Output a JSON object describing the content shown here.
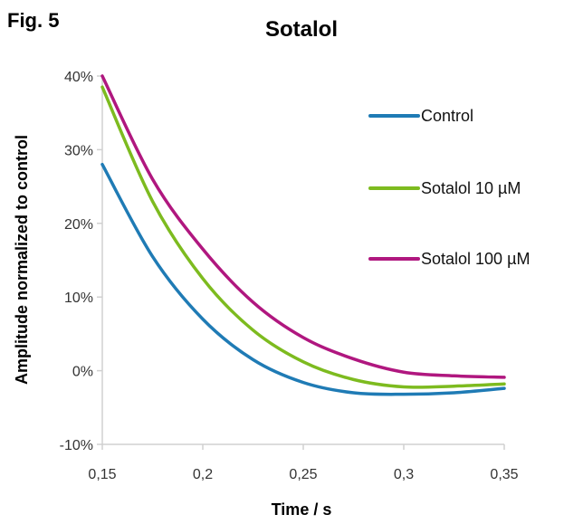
{
  "figure_label": "Fig. 5",
  "chart_data": {
    "type": "line",
    "title": "Sotalol",
    "xlabel": "Time / s",
    "ylabel": "Amplitude normalized to control",
    "xlim": [
      0.15,
      0.35
    ],
    "ylim": [
      -10,
      40
    ],
    "x_ticks": [
      0.15,
      0.2,
      0.25,
      0.3,
      0.35
    ],
    "x_tick_labels": [
      "0,15",
      "0,2",
      "0,25",
      "0,3",
      "0,35"
    ],
    "y_ticks": [
      -10,
      0,
      10,
      20,
      30,
      40
    ],
    "y_tick_labels": [
      "-10%",
      "0%",
      "10%",
      "20%",
      "30%",
      "40%"
    ],
    "grid": false,
    "legend_position": "right",
    "x": [
      0.15,
      0.175,
      0.2,
      0.225,
      0.25,
      0.275,
      0.3,
      0.325,
      0.35
    ],
    "series": [
      {
        "name": "Control",
        "color": "#1f7bb5",
        "values": [
          28,
          15.5,
          7,
          1.5,
          -1.6,
          -3,
          -3.2,
          -3,
          -2.4
        ]
      },
      {
        "name": "Sotalol 10 µM",
        "color": "#7dbb1f",
        "values": [
          38.5,
          23,
          12.5,
          5.5,
          1.2,
          -1.2,
          -2.2,
          -2.1,
          -1.8
        ]
      },
      {
        "name": "Sotalol 100 µM",
        "color": "#b0177f",
        "values": [
          40,
          26,
          16.5,
          9.3,
          4.5,
          1.6,
          -0.2,
          -0.7,
          -0.9
        ]
      }
    ]
  }
}
